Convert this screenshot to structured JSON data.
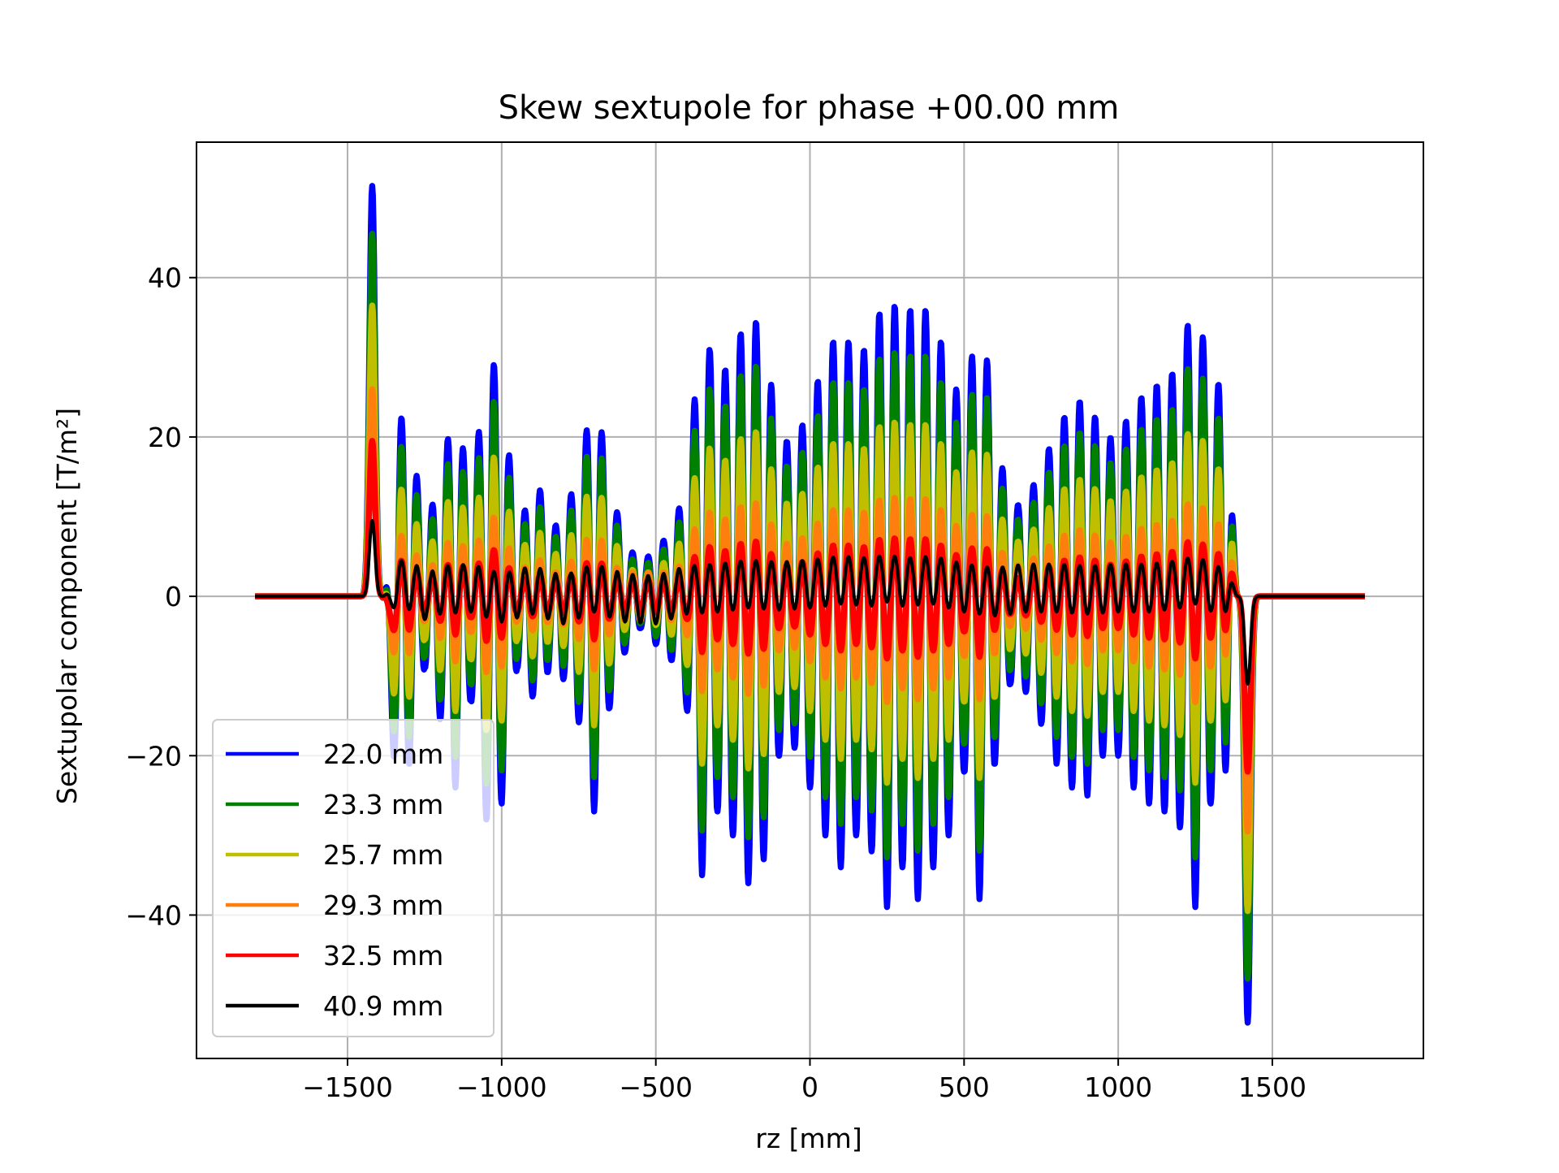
{
  "chart_data": {
    "type": "line",
    "title": "Skew sextupole for phase +00.00 mm",
    "xlabel": "rz [mm]",
    "ylabel": "Sextupolar component [T/m²]",
    "xlim": [
      -1990,
      1990
    ],
    "ylim": [
      -58,
      57
    ],
    "xticks": [
      -1500,
      -1000,
      -500,
      0,
      500,
      1000,
      1500
    ],
    "xtick_labels": [
      "−1500",
      "−1000",
      "−500",
      "0",
      "500",
      "1000",
      "1500"
    ],
    "yticks": [
      -40,
      -20,
      0,
      20,
      40
    ],
    "ytick_labels": [
      "−40",
      "−20",
      "0",
      "20",
      "40"
    ],
    "grid": true,
    "legend_position": "lower-left",
    "x_range": [
      -1800,
      1800
    ],
    "period_mm": 50,
    "core_x_range": [
      -1350,
      1350
    ],
    "main_envelope": [
      [
        -1335,
        23
      ],
      [
        -1300,
        21
      ],
      [
        -1250,
        9
      ],
      [
        -1220,
        12
      ],
      [
        -1150,
        24
      ],
      [
        -1100,
        13
      ],
      [
        -1040,
        31
      ],
      [
        -1000,
        26
      ],
      [
        -950,
        9
      ],
      [
        -880,
        14
      ],
      [
        -840,
        8
      ],
      [
        -790,
        11
      ],
      [
        -740,
        17
      ],
      [
        -700,
        27
      ],
      [
        -650,
        14
      ],
      [
        -600,
        7
      ],
      [
        -550,
        4
      ],
      [
        -500,
        6
      ],
      [
        -450,
        8
      ],
      [
        -400,
        14
      ],
      [
        -350,
        35
      ],
      [
        -300,
        27
      ],
      [
        -250,
        30
      ],
      [
        -200,
        36
      ],
      [
        -150,
        33
      ],
      [
        -100,
        20
      ],
      [
        -50,
        19
      ],
      [
        0,
        24
      ],
      [
        50,
        30
      ],
      [
        100,
        34
      ],
      [
        150,
        30
      ],
      [
        200,
        32
      ],
      [
        250,
        39
      ],
      [
        300,
        34
      ],
      [
        350,
        38
      ],
      [
        400,
        34
      ],
      [
        450,
        30
      ],
      [
        500,
        22
      ],
      [
        550,
        38
      ],
      [
        600,
        21
      ],
      [
        650,
        11
      ],
      [
        700,
        12
      ],
      [
        750,
        16
      ],
      [
        800,
        21
      ],
      [
        850,
        24
      ],
      [
        900,
        25
      ],
      [
        950,
        20
      ],
      [
        1000,
        20
      ],
      [
        1050,
        24
      ],
      [
        1100,
        26
      ],
      [
        1150,
        27
      ],
      [
        1200,
        29
      ],
      [
        1250,
        39
      ],
      [
        1300,
        26
      ],
      [
        1335,
        27
      ]
    ],
    "end_peaks": {
      "entry_x": -1420,
      "exit_x": 1420,
      "entry_values": [
        51.5,
        45.5,
        36.5,
        26,
        19.5,
        9.5
      ],
      "exit_values": [
        -53.5,
        -48,
        -39.5,
        -29.5,
        -22,
        -11
      ]
    },
    "series": [
      {
        "name": "22.0 mm",
        "color": "#0000ff",
        "scale": 1.0,
        "min_floor": 0.0
      },
      {
        "name": "23.3 mm",
        "color": "#008000",
        "scale": 0.84,
        "min_floor": 0.0
      },
      {
        "name": "25.7 mm",
        "color": "#bfbf00",
        "scale": 0.6,
        "min_floor": 0.0
      },
      {
        "name": "29.3 mm",
        "color": "#ff7f0e",
        "scale": 0.34,
        "min_floor": 3.0
      },
      {
        "name": "32.5 mm",
        "color": "#ff0000",
        "scale": 0.2,
        "min_floor": 2.0
      },
      {
        "name": "40.9 mm",
        "color": "#000000",
        "scale": 0.0,
        "min_floor": 3.0
      }
    ],
    "low_order_wave": [
      [
        -1335,
        3.5
      ],
      [
        -1290,
        3.0
      ],
      [
        -1240,
        0.0
      ],
      [
        -1200,
        2.0
      ],
      [
        -1100,
        2.5
      ],
      [
        -1000,
        0.0
      ],
      [
        -900,
        2.0
      ],
      [
        -800,
        -0.5
      ],
      [
        -700,
        2.5
      ],
      [
        -600,
        0.0
      ],
      [
        -500,
        -0.5
      ],
      [
        -400,
        2.0
      ],
      [
        -300,
        2.5
      ],
      [
        -200,
        3.5
      ],
      [
        -100,
        3.0
      ],
      [
        0,
        3.5
      ],
      [
        100,
        4.5
      ],
      [
        200,
        4.0
      ],
      [
        250,
        5.0
      ],
      [
        300,
        4.0
      ],
      [
        400,
        4.5
      ],
      [
        500,
        2.5
      ],
      [
        600,
        1.5
      ],
      [
        700,
        2.5
      ],
      [
        800,
        2.5
      ],
      [
        900,
        2.0
      ],
      [
        1000,
        2.5
      ],
      [
        1100,
        2.5
      ],
      [
        1200,
        3.5
      ],
      [
        1250,
        4.5
      ],
      [
        1335,
        1.5
      ]
    ]
  }
}
